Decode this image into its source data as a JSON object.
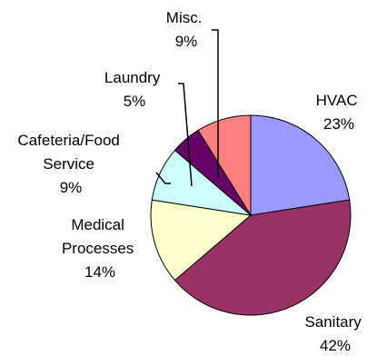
{
  "chart_data": {
    "type": "pie",
    "title": "",
    "legend": "none",
    "slices": [
      {
        "label": "HVAC",
        "percent_label": "23%",
        "value": 23,
        "color": "#9999ff"
      },
      {
        "label": "Sanitary",
        "percent_label": "42%",
        "value": 42,
        "color": "#993366"
      },
      {
        "label": "Medical Processes",
        "percent_label": "14%",
        "value": 14,
        "color": "#ffffcc"
      },
      {
        "label": "Cafeteria/Food Service",
        "percent_label": "9%",
        "value": 9,
        "color": "#ccffff"
      },
      {
        "label": "Laundry",
        "percent_label": "5%",
        "value": 5,
        "color": "#660066"
      },
      {
        "label": "Misc.",
        "percent_label": "9%",
        "value": 9,
        "color": "#ff8080"
      }
    ],
    "labels": {
      "hvac": {
        "line1": "HVAC",
        "line2": "23%"
      },
      "sanitary": {
        "line1": "Sanitary",
        "line2": "42%"
      },
      "medical": {
        "line1": "Medical",
        "line2": "Processes",
        "line3": "14%"
      },
      "cafeteria": {
        "line1": "Cafeteria/Food",
        "line2": "Service",
        "line3": "9%"
      },
      "laundry": {
        "line1": "Laundry",
        "line2": "5%"
      },
      "misc": {
        "line1": "Misc.",
        "line2": "9%"
      }
    }
  }
}
